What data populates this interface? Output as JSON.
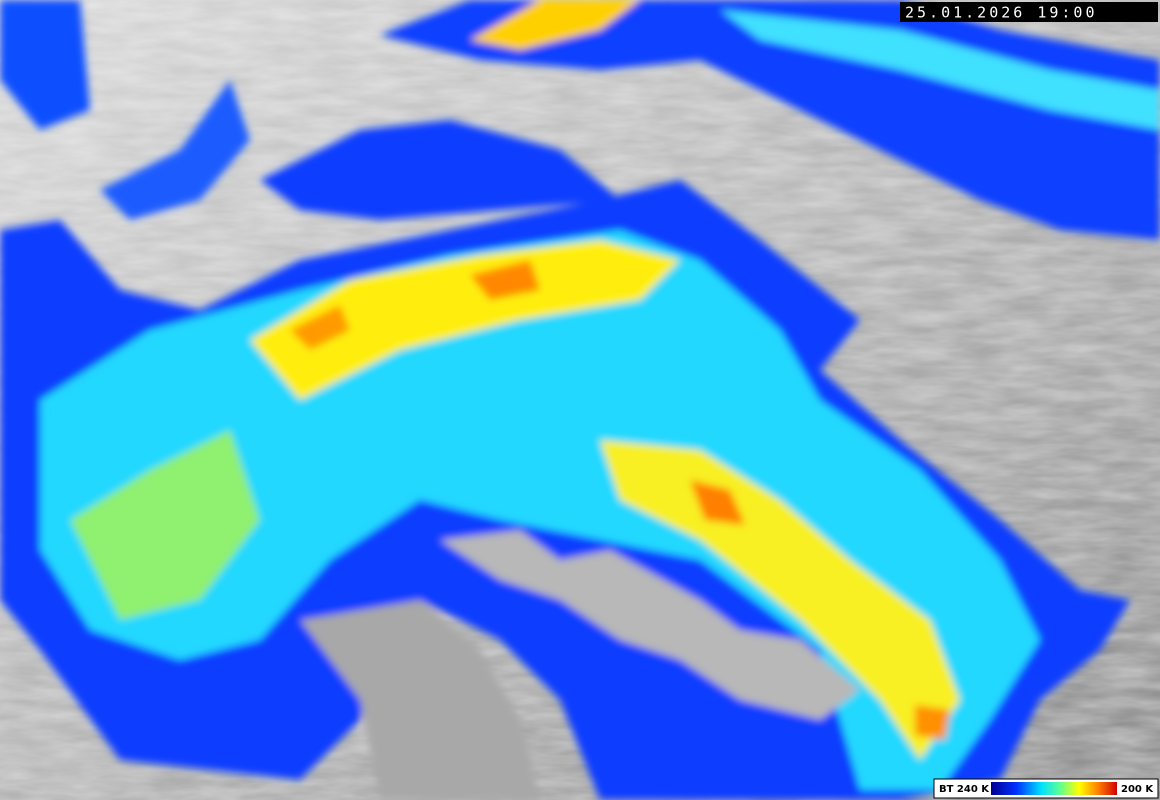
{
  "timestamp": "25.01.2026 19:00",
  "colorbar": {
    "min_label": "BT 240 K",
    "max_label": "200 K"
  }
}
